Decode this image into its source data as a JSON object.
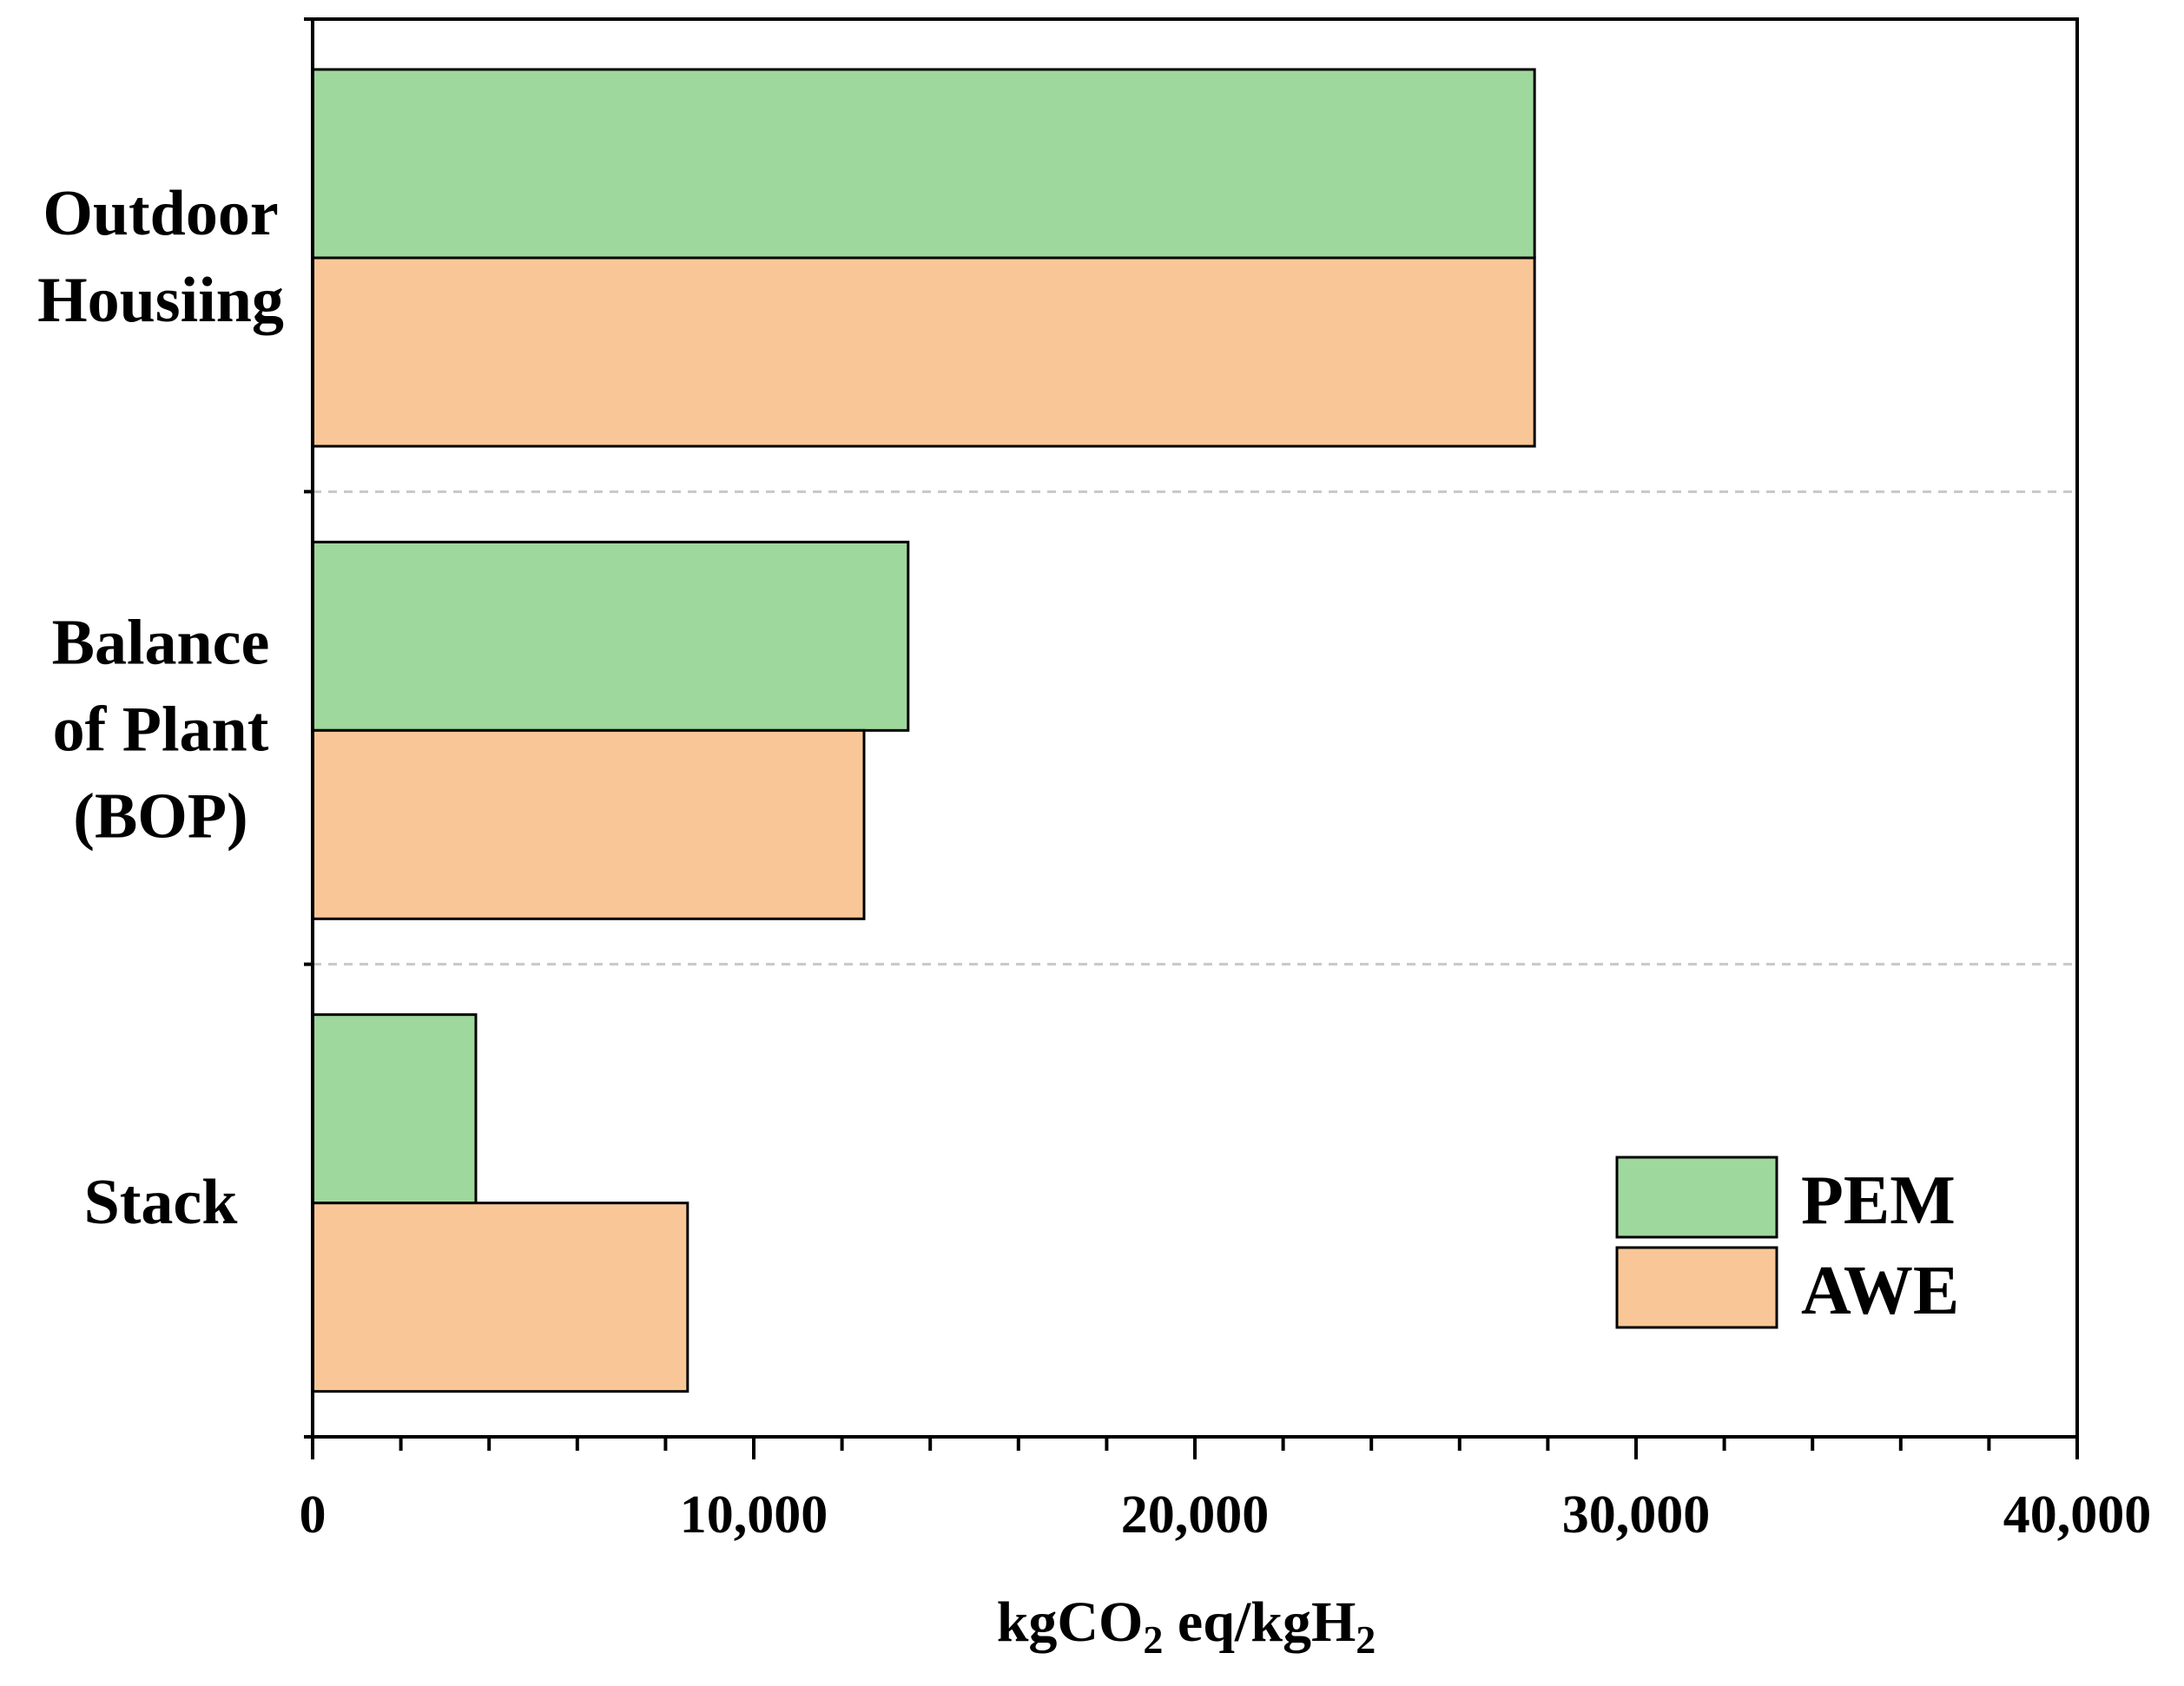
{
  "chart_data": {
    "type": "bar",
    "orientation": "horizontal",
    "categories": [
      [
        "Outdoor",
        "Housiing"
      ],
      [
        "Balance",
        "of Plant",
        "(BOP)"
      ],
      [
        "Stack"
      ]
    ],
    "series": [
      {
        "name": "PEM",
        "color": "#9fd89d",
        "values": [
          27700,
          13500,
          3700
        ]
      },
      {
        "name": "AWE",
        "color": "#f9c797",
        "values": [
          27700,
          12500,
          8500
        ]
      }
    ],
    "xlim": [
      0,
      40000
    ],
    "xticks": [
      0,
      10000,
      20000,
      30000,
      40000
    ],
    "xtick_labels": [
      "0",
      "10,000",
      "20,000",
      "30,000",
      "40,000"
    ],
    "minor_tick_step": 2000,
    "xlabel": {
      "main": "kgCO",
      "sub1": "2",
      "mid": " eq/kgH",
      "sub2": "2"
    },
    "ylabel": "",
    "title": "",
    "legend_position": "bottom-right",
    "category_separators": "dashed"
  }
}
